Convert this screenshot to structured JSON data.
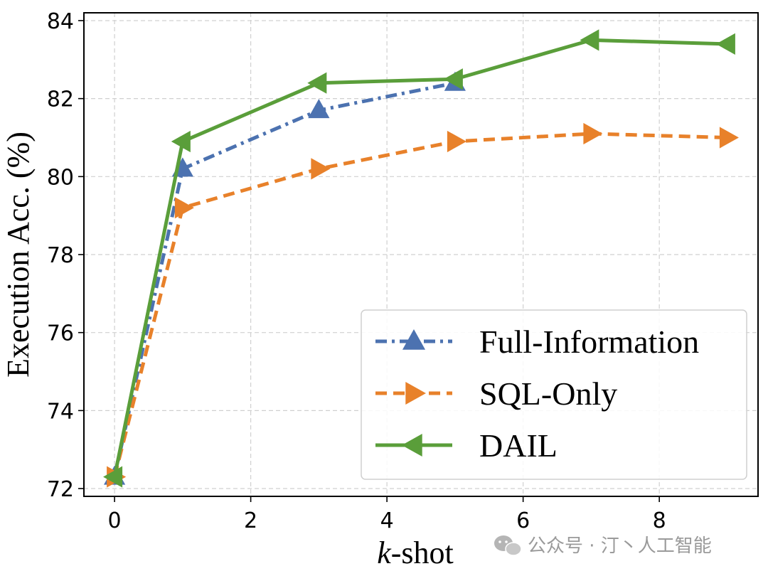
{
  "chart_data": {
    "type": "line",
    "xlabel_italic": "k",
    "xlabel_rest": "-shot",
    "ylabel": "Execution Acc. (%)",
    "xlim": [
      -0.45,
      9.45
    ],
    "ylim": [
      71.8,
      84.2
    ],
    "xticks": [
      0,
      2,
      4,
      6,
      8
    ],
    "yticks": [
      72,
      74,
      76,
      78,
      80,
      82,
      84
    ],
    "grid": true,
    "legend_position": "lower-right",
    "series": [
      {
        "name": "Full-Information",
        "color": "#4c72b0",
        "dash": "dashdot",
        "marker": "triangle-up",
        "x": [
          0,
          1,
          3,
          5
        ],
        "y": [
          72.3,
          80.2,
          81.7,
          82.4
        ]
      },
      {
        "name": "SQL-Only",
        "color": "#e8812a",
        "dash": "dashed",
        "marker": "triangle-right",
        "x": [
          0,
          1,
          3,
          5,
          7,
          9
        ],
        "y": [
          72.3,
          79.2,
          80.2,
          80.9,
          81.1,
          81.0
        ]
      },
      {
        "name": "DAIL",
        "color": "#5a9e3a",
        "dash": "solid",
        "marker": "triangle-left",
        "x": [
          0,
          1,
          3,
          5,
          7,
          9
        ],
        "y": [
          72.3,
          80.9,
          82.4,
          82.5,
          83.5,
          83.4
        ]
      }
    ]
  },
  "watermark": {
    "icon": "wechat-icon",
    "text": "公众号 · 汀丶人工智能"
  }
}
